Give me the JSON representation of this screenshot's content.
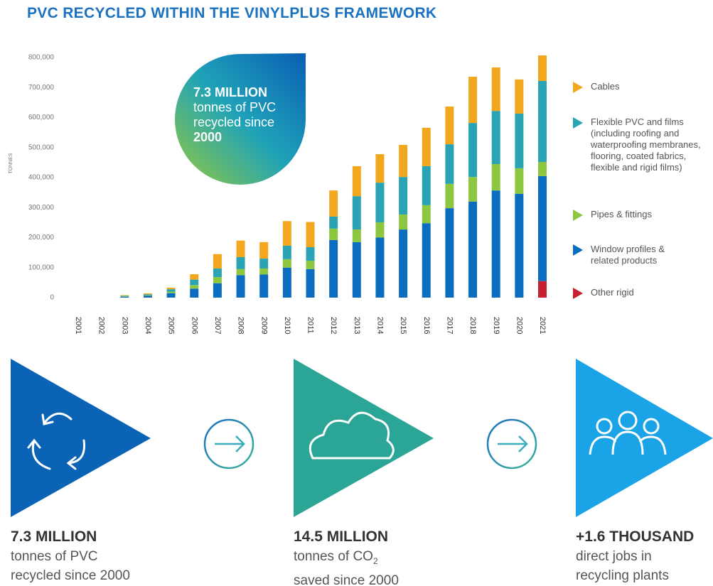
{
  "chart_data": {
    "type": "stacked-bar",
    "title": "PVC RECYCLED WITHIN THE VINYLPLUS FRAMEWORK",
    "y_label": "TONNES",
    "categories": [
      "2001",
      "2002",
      "2003",
      "2004",
      "2005",
      "2006",
      "2007",
      "2008",
      "2009",
      "2010",
      "2011",
      "2012",
      "2013",
      "2014",
      "2015",
      "2016",
      "2017",
      "2018",
      "2019",
      "2020",
      "2021"
    ],
    "series": [
      {
        "name": "Cables",
        "color": "#f2a71e",
        "values": [
          0,
          0,
          2000,
          3000,
          5000,
          18000,
          48000,
          55000,
          55000,
          82000,
          84000,
          87000,
          100000,
          95000,
          107000,
          128000,
          126000,
          154000,
          145000,
          114000,
          85000
        ]
      },
      {
        "name": "Flexible PVC and films (including roofing and waterproofing membranes, flooring, coated fabrics, flexible and rigid films)",
        "color": "#2aa3b4",
        "values": [
          0,
          0,
          2000,
          3000,
          8000,
          18000,
          29000,
          40000,
          33000,
          45000,
          45000,
          40000,
          111000,
          132000,
          125000,
          130000,
          132000,
          180000,
          177000,
          182000,
          270000
        ]
      },
      {
        "name": "Pipes & fittings",
        "color": "#8dc63f",
        "values": [
          0,
          0,
          1000,
          2000,
          5000,
          12000,
          20000,
          20000,
          20000,
          28000,
          28000,
          38000,
          42000,
          51000,
          50000,
          60000,
          81000,
          82000,
          88000,
          85000,
          47000
        ]
      },
      {
        "name": "Window profiles & related products",
        "color": "#0a6dbf",
        "values": [
          0,
          0,
          3000,
          6000,
          15000,
          30000,
          48000,
          75000,
          77000,
          100000,
          95000,
          192000,
          185000,
          200000,
          227000,
          248000,
          298000,
          320000,
          357000,
          346000,
          350000
        ]
      },
      {
        "name": "Other rigid",
        "color": "#c8202f",
        "values": [
          0,
          0,
          0,
          0,
          0,
          0,
          0,
          0,
          0,
          0,
          0,
          0,
          0,
          0,
          0,
          0,
          0,
          0,
          0,
          0,
          55000
        ]
      }
    ],
    "ylim": [
      0,
      800000
    ],
    "yticks": [
      0,
      {
        "value": 100000,
        "label": "100,000"
      },
      {
        "value": 200000,
        "label": "200,000"
      },
      {
        "value": 300000,
        "label": "300,000"
      },
      {
        "value": 400000,
        "label": "400,000"
      },
      {
        "value": 500000,
        "label": "500,000"
      },
      {
        "value": 600000,
        "label": "600,000"
      },
      {
        "value": 700000,
        "label": "700,000"
      },
      {
        "value": 800000,
        "label": "800,000"
      }
    ],
    "grid": false,
    "legend": "right"
  },
  "callout": {
    "headline": "7.3 MILLION",
    "text": "tonnes of PVC recycled since",
    "year": "2000"
  },
  "stats": [
    {
      "headline": "7.3 MILLION",
      "line1": "tonnes of PVC",
      "line2": "recycled since 2000"
    },
    {
      "headline": "14.5 MILLION",
      "line1": "tonnes of CO",
      "line1_sub": "2",
      "line2": "saved since 2000"
    },
    {
      "headline": "+1.6 THOUSAND",
      "line1": "direct jobs in",
      "line2": "recycling plants"
    }
  ]
}
